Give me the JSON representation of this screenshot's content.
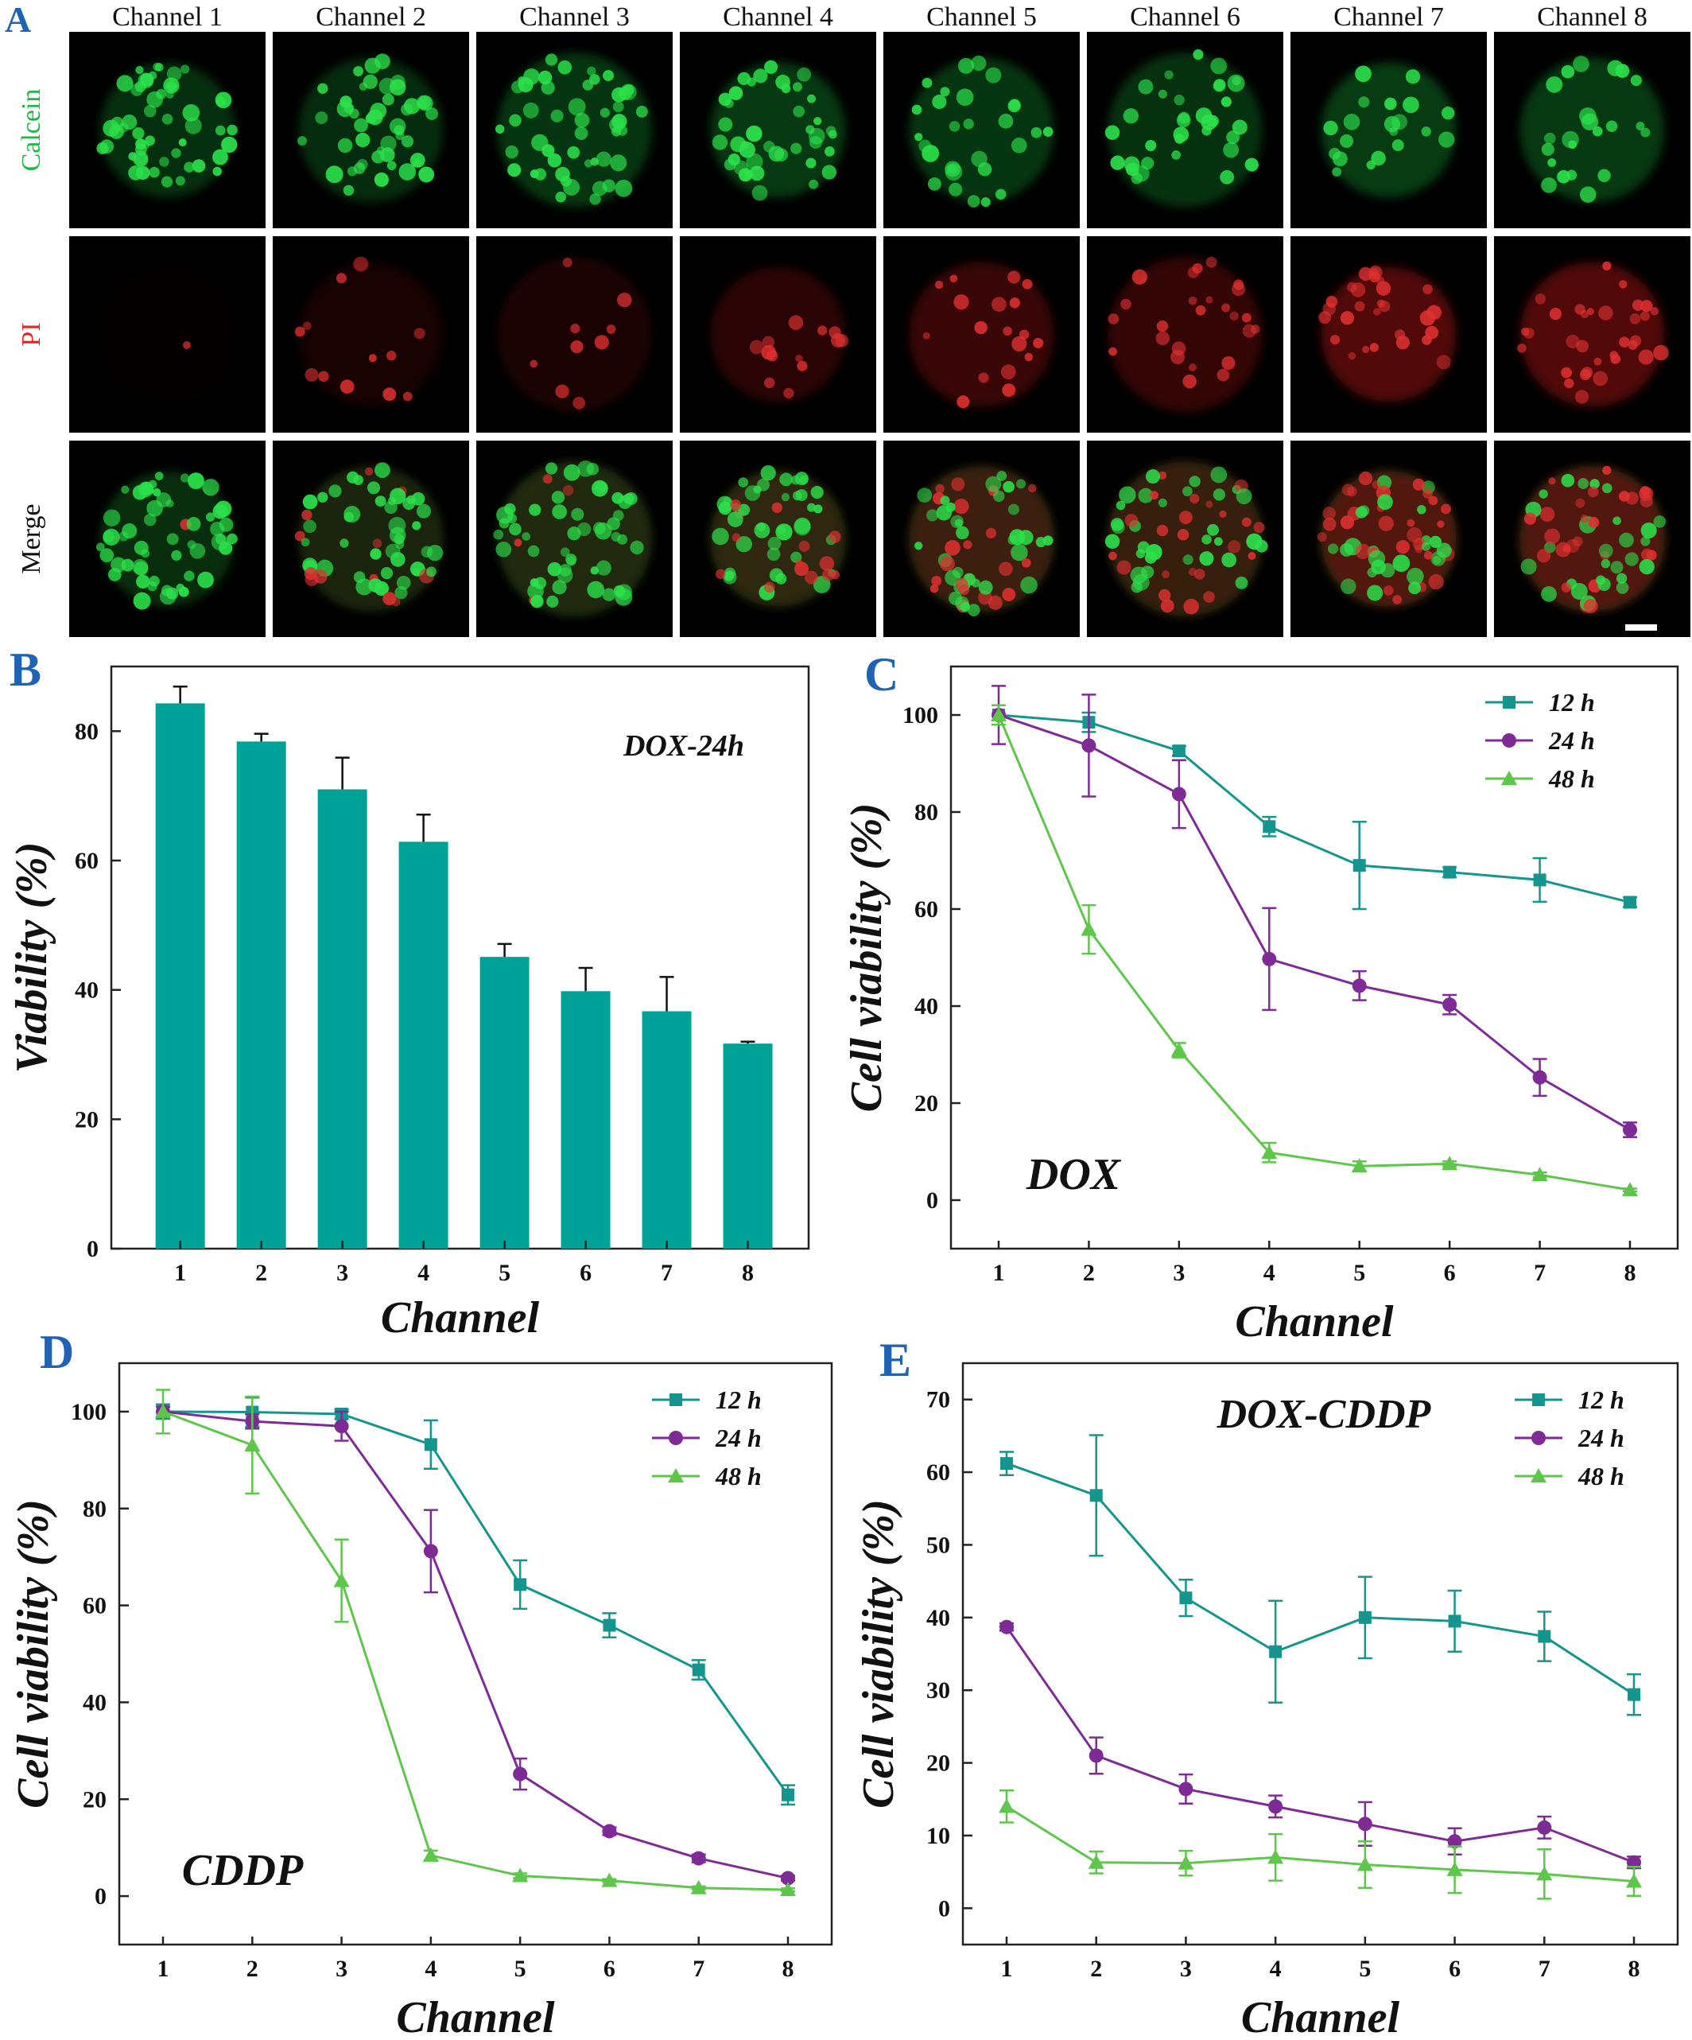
{
  "panel_letters": {
    "a": "A",
    "b": "B",
    "c": "C",
    "d": "D",
    "e": "E"
  },
  "microscopy": {
    "columns": [
      "Channel 1",
      "Channel 2",
      "Channel 3",
      "Channel 4",
      "Channel 5",
      "Channel 6",
      "Channel 7",
      "Channel 8"
    ],
    "rows": [
      {
        "label": "Calcein",
        "color": "#1db845"
      },
      {
        "label": "PI",
        "color": "#e32222"
      },
      {
        "label": "Merge",
        "color": "#111111"
      }
    ],
    "green_intensity": [
      0.75,
      0.7,
      0.85,
      0.9,
      0.85,
      0.8,
      0.95,
      0.9
    ],
    "red_intensity": [
      0.05,
      0.25,
      0.3,
      0.45,
      0.6,
      0.55,
      0.85,
      0.85
    ]
  },
  "chart_data": [
    {
      "panel": "B",
      "type": "bar",
      "categories": [
        "1",
        "2",
        "3",
        "4",
        "5",
        "6",
        "7",
        "8"
      ],
      "values": [
        84.3,
        78.4,
        71.0,
        62.9,
        45.1,
        39.8,
        36.7,
        31.7
      ],
      "errors": [
        2.6,
        1.2,
        4.9,
        4.2,
        2.0,
        3.6,
        5.3,
        0.3
      ],
      "annotation": "DOX-24h",
      "xlabel": "Channel",
      "ylabel": "Viability (%)",
      "ylim": [
        0,
        90
      ],
      "yticks": [
        0,
        20,
        40,
        60,
        80
      ],
      "bar_color": "#00a197"
    },
    {
      "panel": "C",
      "type": "line",
      "x": [
        1,
        2,
        3,
        4,
        5,
        6,
        7,
        8
      ],
      "annotation": "DOX",
      "xlabel": "Channel",
      "ylabel": "Cell viability (%)",
      "ylim": [
        -10,
        110
      ],
      "yticks": [
        0,
        20,
        40,
        60,
        80,
        100
      ],
      "legend_position": "top-right",
      "series": [
        {
          "name": "12 h",
          "marker": "square",
          "color": "#14958d",
          "values": [
            100,
            98.5,
            92.6,
            77.0,
            69.0,
            67.6,
            66.0,
            61.4
          ],
          "errors": [
            2,
            2,
            1,
            2,
            9,
            1,
            4.5,
            1
          ]
        },
        {
          "name": "24 h",
          "marker": "circle",
          "color": "#7e2b96",
          "values": [
            100,
            93.7,
            83.7,
            49.7,
            44.2,
            40.3,
            25.3,
            14.5
          ],
          "errors": [
            6,
            10.5,
            7,
            10.5,
            3,
            2,
            3.8,
            1.5
          ]
        },
        {
          "name": "48 h",
          "marker": "triangle",
          "color": "#5ec64b",
          "values": [
            100,
            55.8,
            30.9,
            9.8,
            7.0,
            7.5,
            5.2,
            2.1
          ],
          "errors": [
            2,
            5,
            1.5,
            2,
            1,
            0.5,
            0.5,
            0.3
          ]
        }
      ]
    },
    {
      "panel": "D",
      "type": "line",
      "x": [
        1,
        2,
        3,
        4,
        5,
        6,
        7,
        8
      ],
      "annotation": "CDDP",
      "xlabel": "Channel",
      "ylabel": "Cell viability (%)",
      "ylim": [
        -10,
        110
      ],
      "yticks": [
        0,
        20,
        40,
        60,
        80,
        100
      ],
      "legend_position": "top-right",
      "series": [
        {
          "name": "12 h",
          "marker": "square",
          "color": "#14958d",
          "values": [
            100,
            99.9,
            99.5,
            93.2,
            64.3,
            55.9,
            46.7,
            20.9
          ],
          "errors": [
            1.5,
            3,
            1,
            5,
            5,
            2.5,
            2,
            2
          ]
        },
        {
          "name": "24 h",
          "marker": "circle",
          "color": "#7e2b96",
          "values": [
            100,
            98.0,
            97.0,
            71.2,
            25.2,
            13.4,
            7.8,
            3.7
          ],
          "errors": [
            1,
            1.5,
            3,
            8.5,
            3.2,
            0.8,
            0.8,
            0.5
          ]
        },
        {
          "name": "48 h",
          "marker": "triangle",
          "color": "#5ec64b",
          "values": [
            100,
            93.1,
            65.1,
            8.4,
            4.2,
            3.2,
            1.7,
            1.3
          ],
          "errors": [
            4.5,
            10,
            8.5,
            1,
            0.5,
            0.3,
            0.3,
            0.3
          ]
        }
      ]
    },
    {
      "panel": "E",
      "type": "line",
      "x": [
        1,
        2,
        3,
        4,
        5,
        6,
        7,
        8
      ],
      "annotation": "DOX-CDDP",
      "xlabel": "Channel",
      "ylabel": "Cell viability (%)",
      "ylim": [
        -5,
        75
      ],
      "yticks": [
        0,
        10,
        20,
        30,
        40,
        50,
        60,
        70
      ],
      "legend_position": "top-right",
      "series": [
        {
          "name": "12 h",
          "marker": "square",
          "color": "#14958d",
          "values": [
            61.2,
            56.8,
            42.7,
            35.3,
            40.0,
            39.5,
            37.4,
            29.4
          ],
          "errors": [
            1.6,
            8.3,
            2.5,
            7,
            5.6,
            4.2,
            3.4,
            2.8
          ]
        },
        {
          "name": "24 h",
          "marker": "circle",
          "color": "#7e2b96",
          "values": [
            38.7,
            21.0,
            16.4,
            14.0,
            11.6,
            9.2,
            11.1,
            6.3
          ],
          "errors": [
            0.5,
            2.5,
            2,
            1.5,
            3,
            1.8,
            1.5,
            0.8
          ]
        },
        {
          "name": "48 h",
          "marker": "triangle",
          "color": "#5ec64b",
          "values": [
            14.0,
            6.3,
            6.2,
            7.0,
            6.0,
            5.3,
            4.7,
            3.7
          ],
          "errors": [
            2.2,
            1.5,
            1.7,
            3.2,
            3.2,
            3.2,
            3.4,
            2
          ]
        }
      ]
    }
  ]
}
